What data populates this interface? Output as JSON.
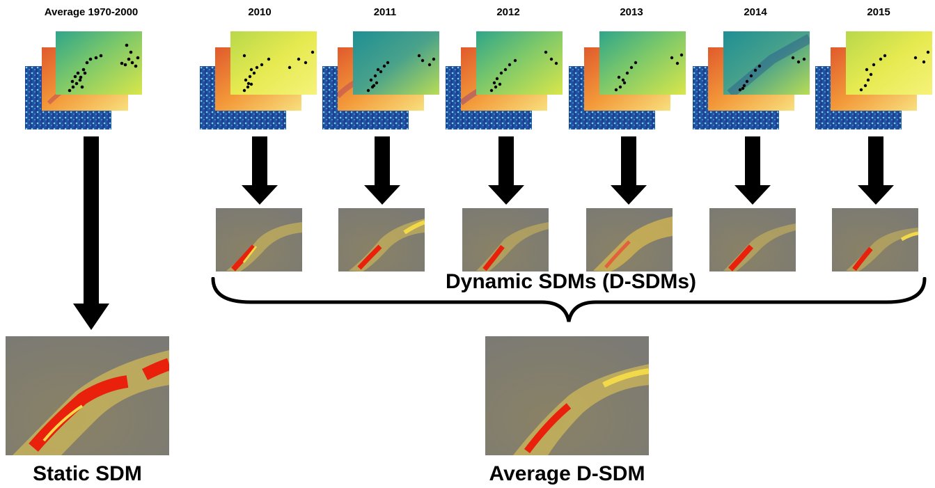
{
  "headers": {
    "baseline": "Average 1970-2000",
    "years": [
      "2010",
      "2011",
      "2012",
      "2013",
      "2014",
      "2015"
    ]
  },
  "labels": {
    "dynamic": "Dynamic SDMs (D-SDMs)",
    "static": "Static SDM",
    "average": "Average D-SDM"
  },
  "colors": {
    "arrow": "#000000",
    "map_background": "#7d7a72",
    "suitability_high": "#e8200c",
    "suitability_mid": "#f2d94a",
    "layer_green": "#a7d65a",
    "layer_orange": "#f08a2e",
    "layer_blue": "#1c3f8f"
  }
}
